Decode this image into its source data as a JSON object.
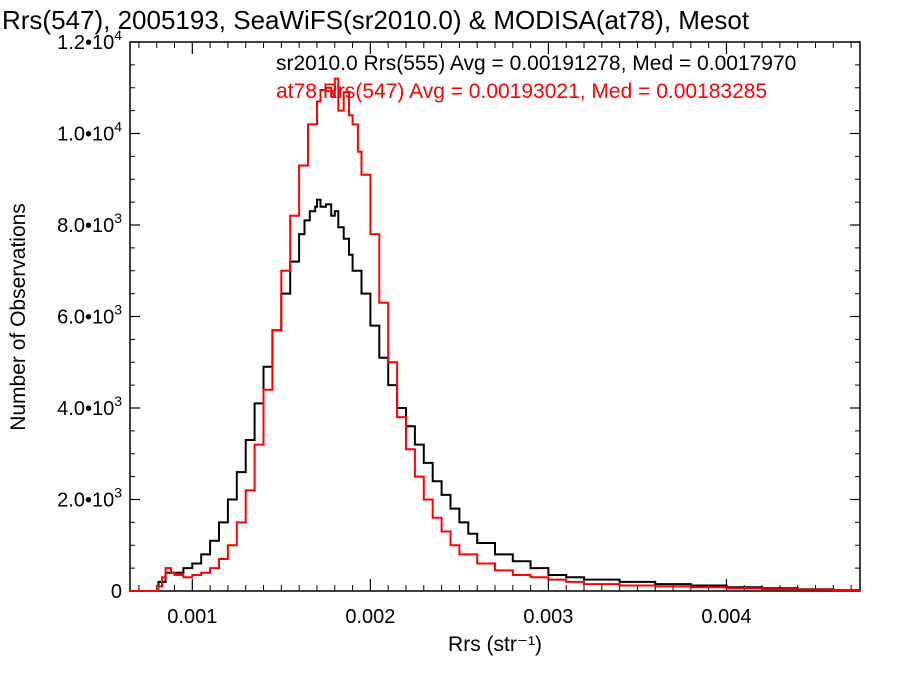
{
  "chart_data": {
    "type": "line",
    "title": "Rrs(547), 2005193, SeaWiFS(sr2010.0) & MODISA(at78), Mesot",
    "xlabel": "Rrs (str⁻¹)",
    "ylabel": "Number of Observations",
    "xlim": [
      0.00065,
      0.00475
    ],
    "ylim": [
      0,
      12000
    ],
    "x_ticks": [
      {
        "value": 0.001,
        "label": "0.001"
      },
      {
        "value": 0.002,
        "label": "0.002"
      },
      {
        "value": 0.003,
        "label": "0.003"
      },
      {
        "value": 0.004,
        "label": "0.004"
      }
    ],
    "y_ticks": [
      {
        "value": 0,
        "label": "0"
      },
      {
        "value": 2000,
        "label": "2.0•103",
        "base": "2.0•10",
        "exp": "3"
      },
      {
        "value": 4000,
        "label": "4.0•103",
        "base": "4.0•10",
        "exp": "3"
      },
      {
        "value": 6000,
        "label": "6.0•103",
        "base": "6.0•10",
        "exp": "3"
      },
      {
        "value": 8000,
        "label": "8.0•103",
        "base": "8.0•10",
        "exp": "3"
      },
      {
        "value": 10000,
        "label": "1.0•104",
        "base": "1.0•10",
        "exp": "4"
      },
      {
        "value": 12000,
        "label": "1.2•104",
        "base": "1.2•10",
        "exp": "4"
      }
    ],
    "legend_placement": "top-right",
    "series": [
      {
        "name": "sr2010.0 Rrs(555) Avg = 0.00191278, Med = 0.0017970",
        "color": "#000000",
        "x": [
          0.00065,
          0.00079,
          0.00081,
          0.00085,
          0.0009,
          0.00095,
          0.001,
          0.00105,
          0.0011,
          0.00115,
          0.0012,
          0.00125,
          0.0013,
          0.00135,
          0.0014,
          0.00145,
          0.0015,
          0.00155,
          0.0016,
          0.00163,
          0.00166,
          0.00169,
          0.0017,
          0.00172,
          0.00175,
          0.00178,
          0.0018,
          0.00182,
          0.00185,
          0.00188,
          0.0019,
          0.00195,
          0.002,
          0.00205,
          0.0021,
          0.00215,
          0.0022,
          0.00225,
          0.0023,
          0.00235,
          0.0024,
          0.00245,
          0.0025,
          0.00255,
          0.0026,
          0.0027,
          0.0028,
          0.0029,
          0.003,
          0.0031,
          0.0032,
          0.0034,
          0.0036,
          0.0038,
          0.004,
          0.0042,
          0.0044,
          0.0046,
          0.00475
        ],
        "y": [
          0,
          0,
          200,
          400,
          400,
          500,
          600,
          800,
          1100,
          1500,
          2000,
          2600,
          3300,
          4100,
          4900,
          5700,
          6500,
          7200,
          7800,
          8100,
          8300,
          8400,
          8550,
          8400,
          8450,
          8200,
          8300,
          7950,
          7700,
          7350,
          7000,
          6500,
          5800,
          5100,
          4500,
          4000,
          3600,
          3200,
          2800,
          2400,
          2100,
          1800,
          1500,
          1250,
          1050,
          800,
          650,
          500,
          350,
          300,
          250,
          200,
          150,
          120,
          80,
          60,
          40,
          20,
          10
        ]
      },
      {
        "name": "at78 Rrs(547) Avg = 0.00193021, Med = 0.00183285",
        "color": "#ff0000",
        "x": [
          0.00065,
          0.00079,
          0.00081,
          0.00083,
          0.00085,
          0.00088,
          0.0009,
          0.00095,
          0.001,
          0.00105,
          0.0011,
          0.00115,
          0.0012,
          0.00125,
          0.0013,
          0.00135,
          0.0014,
          0.00145,
          0.0015,
          0.00155,
          0.0016,
          0.00165,
          0.0017,
          0.00172,
          0.00175,
          0.00178,
          0.0018,
          0.00182,
          0.00185,
          0.00188,
          0.0019,
          0.00193,
          0.00195,
          0.002,
          0.00205,
          0.0021,
          0.00215,
          0.0022,
          0.00225,
          0.0023,
          0.00235,
          0.0024,
          0.00245,
          0.0025,
          0.0026,
          0.0027,
          0.0028,
          0.0029,
          0.003,
          0.0031,
          0.0032,
          0.0034,
          0.0036,
          0.0038,
          0.004,
          0.0042,
          0.0044,
          0.0046,
          0.00475
        ],
        "y": [
          0,
          0,
          100,
          300,
          500,
          400,
          350,
          300,
          350,
          400,
          500,
          700,
          1000,
          1500,
          2200,
          3200,
          4400,
          5700,
          7000,
          8200,
          9300,
          10200,
          10700,
          10950,
          11000,
          10800,
          11200,
          10500,
          10900,
          10400,
          10200,
          9600,
          9100,
          7800,
          6300,
          5000,
          3800,
          3100,
          2500,
          2000,
          1600,
          1300,
          1000,
          800,
          600,
          450,
          350,
          300,
          250,
          200,
          150,
          120,
          100,
          80,
          60,
          40,
          30,
          20,
          10
        ]
      }
    ]
  }
}
